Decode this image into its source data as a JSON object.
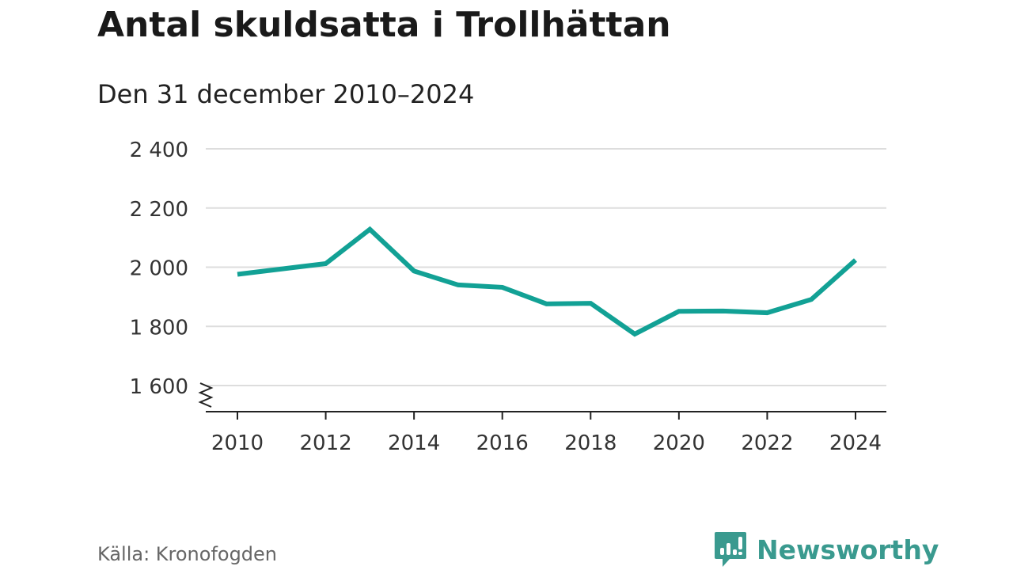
{
  "title": "Antal skuldsatta i Trollhättan",
  "subtitle": "Den 31 december 2010–2024",
  "source": "Källa: Kronofogden",
  "brand": "Newsworthy",
  "colors": {
    "line": "#12a195",
    "grid": "#dddddd",
    "brand": "#3a9a8f"
  },
  "chart_data": {
    "type": "line",
    "title": "Antal skuldsatta i Trollhättan",
    "xlabel": "",
    "ylabel": "",
    "x": [
      2010,
      2011,
      2012,
      2013,
      2014,
      2015,
      2016,
      2017,
      2018,
      2019,
      2020,
      2021,
      2022,
      2023,
      2024
    ],
    "series": [
      {
        "name": "Antal skuldsatta",
        "values": [
          1976,
          1994,
          2012,
          2128,
          1987,
          1940,
          1932,
          1876,
          1878,
          1774,
          1851,
          1852,
          1846,
          1891,
          2024
        ]
      }
    ],
    "ylim": [
      1510,
      2400
    ],
    "yticks": [
      {
        "v": 2400,
        "label": "2 400"
      },
      {
        "v": 2200,
        "label": "2 200"
      },
      {
        "v": 2000,
        "label": "2 000"
      },
      {
        "v": 1800,
        "label": "1 800"
      },
      {
        "v": 1600,
        "label": "1 600"
      }
    ],
    "xticks": [
      2010,
      2012,
      2014,
      2016,
      2018,
      2020,
      2022,
      2024
    ],
    "grid": true,
    "axis_break": true
  }
}
